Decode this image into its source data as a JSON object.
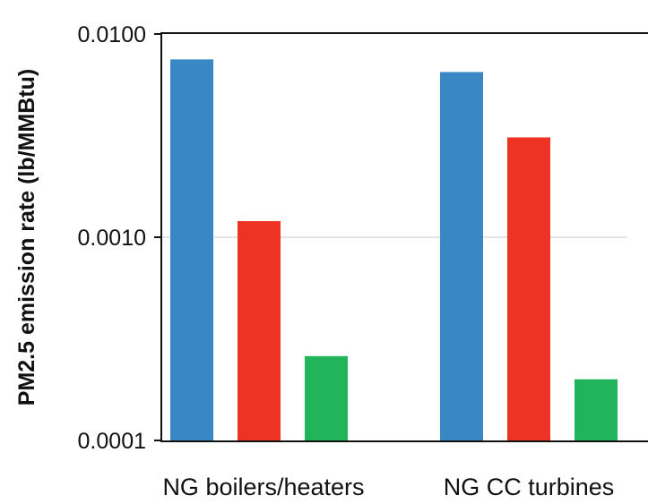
{
  "chart_data": {
    "type": "bar",
    "title": "",
    "xlabel": "",
    "ylabel": "PM2.5 emission rate (lb/MMBtu)",
    "y_scale": "log",
    "ylim": [
      0.0001,
      0.01
    ],
    "y_ticks": [
      0.0001,
      0.001,
      0.01
    ],
    "y_tick_labels": [
      "0.0001",
      "0.0010",
      "0.0100"
    ],
    "grid": "horizontal at major ticks",
    "legend": "none",
    "categories": [
      "NG boilers/heaters",
      "NG CC turbines"
    ],
    "series": [
      {
        "color": "#3a87c6",
        "values": [
          0.0075,
          0.0065
        ]
      },
      {
        "color": "#ee3324",
        "values": [
          0.0012,
          0.0031
        ]
      },
      {
        "color": "#21b45a",
        "values": [
          0.00026,
          0.0002
        ]
      }
    ]
  }
}
